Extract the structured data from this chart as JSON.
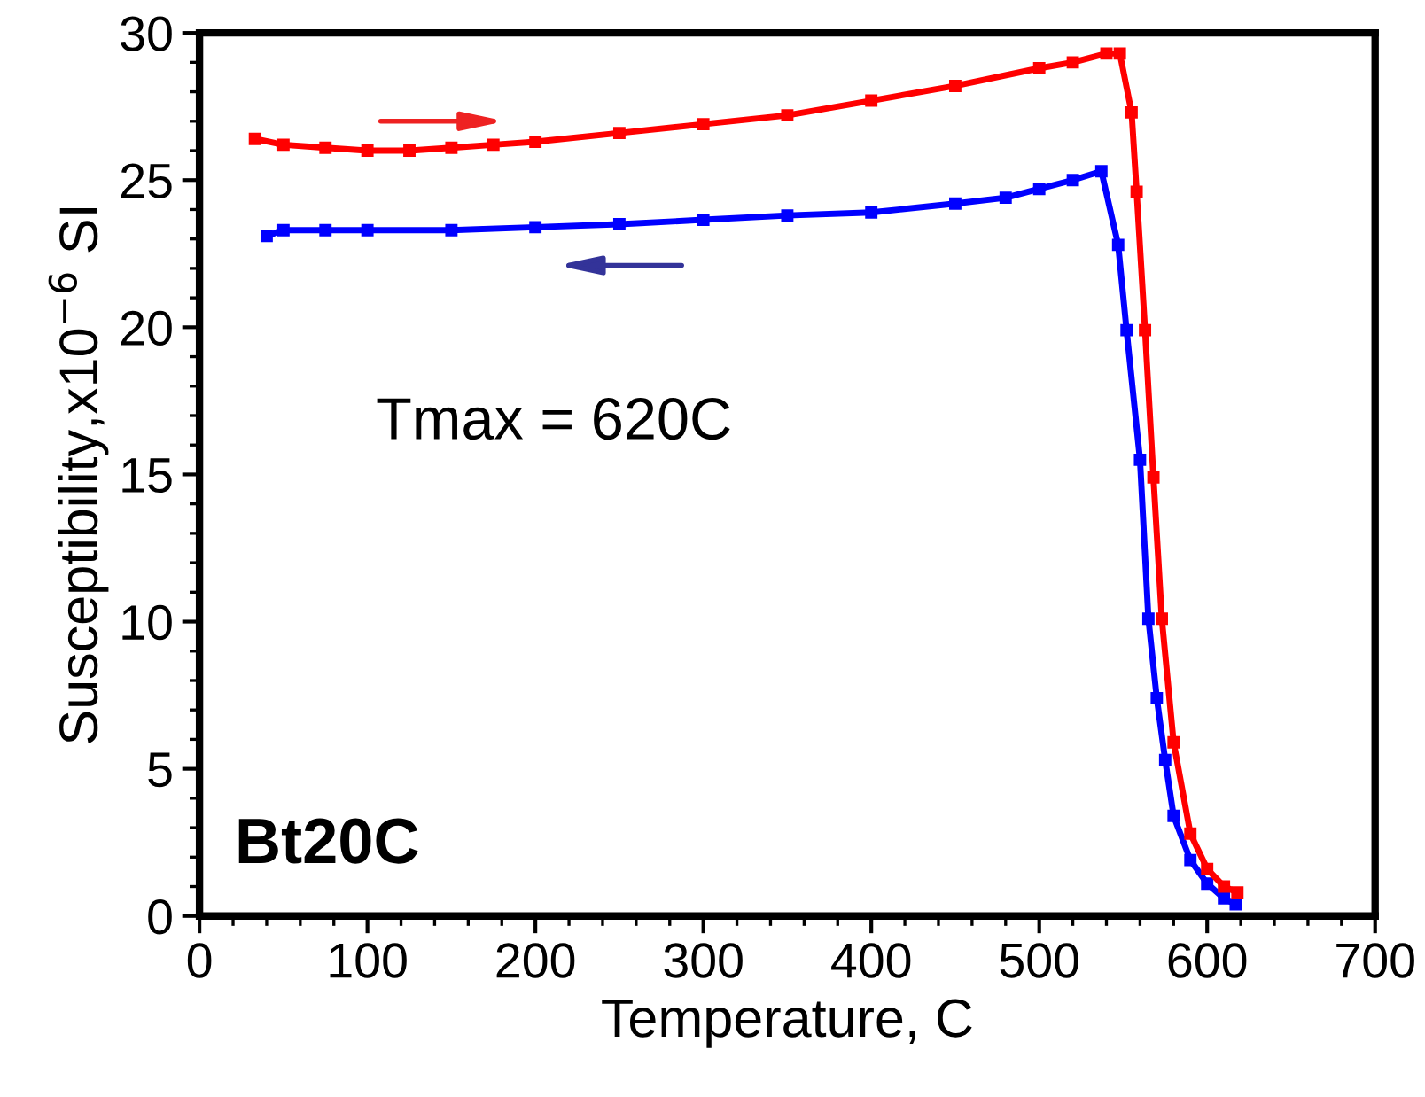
{
  "chart_data": {
    "type": "line",
    "xlabel": "Temperature, C",
    "ylabel": "Susceptibility,x10$^{−6}$ SI",
    "xlim": [
      0,
      700
    ],
    "xticks": [
      0,
      100,
      200,
      300,
      400,
      500,
      600,
      700
    ],
    "ylim": [
      0,
      30
    ],
    "yticks": [
      0,
      5,
      10,
      15,
      20,
      25,
      30
    ],
    "grid": false,
    "legend": false,
    "marker": "square",
    "line_style": "solid",
    "annotations": [
      "Tmax = 620C",
      "Bt20C"
    ],
    "series": [
      {
        "color": "#ff0000",
        "x": [
          33,
          50,
          75,
          100,
          125,
          150,
          175,
          200,
          250,
          300,
          350,
          400,
          450,
          500,
          520,
          540,
          548,
          555,
          558,
          563,
          568,
          573,
          580,
          590,
          600,
          610,
          618
        ],
        "values": [
          26.4,
          26.2,
          26.1,
          26.0,
          26.0,
          26.1,
          26.2,
          26.3,
          26.6,
          26.9,
          27.2,
          27.7,
          28.2,
          28.8,
          29.0,
          29.3,
          29.3,
          27.3,
          24.6,
          19.9,
          14.9,
          10.1,
          5.9,
          2.8,
          1.6,
          1.0,
          0.8
        ]
      },
      {
        "color": "#0000ff",
        "x": [
          40,
          50,
          75,
          100,
          150,
          200,
          250,
          300,
          350,
          400,
          450,
          480,
          500,
          520,
          537,
          547,
          552,
          560,
          565,
          570,
          575,
          580,
          590,
          600,
          610,
          617
        ],
        "values": [
          23.1,
          23.3,
          23.3,
          23.3,
          23.3,
          23.4,
          23.5,
          23.65,
          23.8,
          23.9,
          24.2,
          24.4,
          24.7,
          25.0,
          25.3,
          22.8,
          19.9,
          15.5,
          10.1,
          7.4,
          5.3,
          3.4,
          1.9,
          1.1,
          0.6,
          0.4
        ]
      }
    ]
  }
}
